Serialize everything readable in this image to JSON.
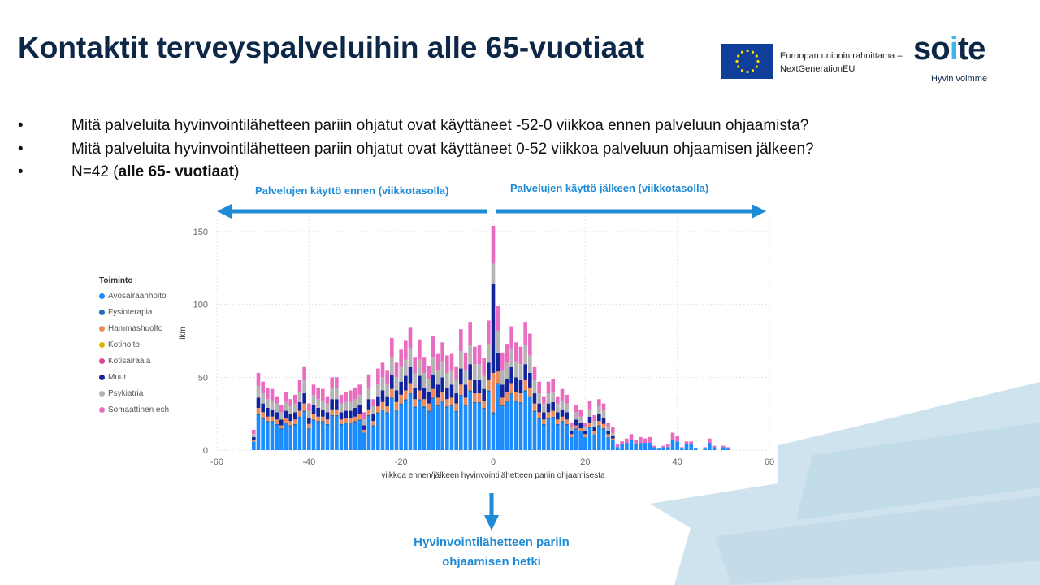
{
  "title": "Kontaktit terveyspalveluihin alle 65-vuotiaat",
  "eu_logo": {
    "text_line1": "Euroopan unionin rahoittama –",
    "text_line2": "NextGenerationEU",
    "icon": "eu-flag-icon"
  },
  "soite_logo": {
    "text": "soite",
    "tagline": "Hyvin voimme"
  },
  "bullets": [
    {
      "marker": "•",
      "text": "Mitä palveluita hyvinvointilähetteen pariin ohjatut ovat käyttäneet -52-0 viikkoa ennen palveluun ohjaamista?"
    },
    {
      "marker": "•",
      "text": "Mitä palveluita hyvinvointilähetteen pariin ohjatut ovat käyttäneet 0-52 viikkoa palveluun ohjaamisen jälkeen?"
    },
    {
      "marker": "•",
      "text_prefix": "N=42 (",
      "text_bold": "alle 65- vuotiaat",
      "text_suffix": ")"
    }
  ],
  "annotations": {
    "before": "Palvelujen käyttö ennen (viikkotasolla)",
    "after": "Palvelujen käyttö jälkeen (viikkotasolla)",
    "moment_line1": "Hyvinvointilähetteen pariin",
    "moment_line2": "ohjaamisen hetki",
    "arrow_color": "#1f8ad6"
  },
  "chart_data": {
    "type": "bar",
    "stacked": true,
    "xlabel": "viikkoa ennen/jälkeen hyvinvointilähetteen pariin ohjaamisesta",
    "ylabel": "lkm",
    "xlim": [
      -60,
      60
    ],
    "ylim": [
      0,
      160
    ],
    "xticks": [
      -60,
      -40,
      -20,
      0,
      20,
      40,
      60
    ],
    "yticks": [
      0,
      50,
      100,
      150
    ],
    "grid": true,
    "legend_title": "Toiminto",
    "legend_placement": "left",
    "x": [
      -52,
      -51,
      -50,
      -49,
      -48,
      -47,
      -46,
      -45,
      -44,
      -43,
      -42,
      -41,
      -40,
      -39,
      -38,
      -37,
      -36,
      -35,
      -34,
      -33,
      -32,
      -31,
      -30,
      -29,
      -28,
      -27,
      -26,
      -25,
      -24,
      -23,
      -22,
      -21,
      -20,
      -19,
      -18,
      -17,
      -16,
      -15,
      -14,
      -13,
      -12,
      -11,
      -10,
      -9,
      -8,
      -7,
      -6,
      -5,
      -4,
      -3,
      -2,
      -1,
      0,
      1,
      2,
      3,
      4,
      5,
      6,
      7,
      8,
      9,
      10,
      11,
      12,
      13,
      14,
      15,
      16,
      17,
      18,
      19,
      20,
      21,
      22,
      23,
      24,
      25,
      26,
      27,
      28,
      29,
      30,
      31,
      32,
      33,
      34,
      35,
      36,
      37,
      38,
      39,
      40,
      41,
      42,
      43,
      44,
      45,
      46,
      47,
      48,
      49,
      50,
      51,
      52
    ],
    "series": [
      {
        "name": "Avosairaanhoito",
        "color": "#1a8cff",
        "values": [
          6,
          24,
          21,
          19,
          19,
          17,
          14,
          18,
          16,
          17,
          22,
          26,
          14,
          20,
          19,
          19,
          17,
          23,
          23,
          17,
          18,
          18,
          19,
          20,
          12,
          23,
          16,
          25,
          27,
          25,
          35,
          27,
          31,
          34,
          38,
          29,
          34,
          29,
          26,
          35,
          30,
          33,
          29,
          30,
          26,
          37,
          30,
          40,
          32,
          32,
          28,
          40,
          24,
          45,
          30,
          33,
          38,
          33,
          32,
          40,
          36,
          26,
          21,
          17,
          21,
          22,
          17,
          19,
          17,
          9,
          14,
          13,
          9,
          15,
          11,
          16,
          14,
          9,
          7,
          2,
          4,
          5,
          7,
          4,
          5,
          5,
          5,
          2,
          1,
          2,
          2,
          7,
          6,
          1,
          4,
          4,
          1,
          0,
          1,
          5,
          2,
          0,
          2,
          1,
          0
        ]
      },
      {
        "name": "Fysioterapia",
        "color": "#1f6cb8",
        "values": [
          0,
          1,
          1,
          1,
          1,
          1,
          1,
          1,
          1,
          1,
          1,
          1,
          1,
          1,
          1,
          1,
          1,
          1,
          1,
          1,
          1,
          1,
          1,
          1,
          0,
          1,
          1,
          1,
          1,
          1,
          1,
          1,
          1,
          1,
          1,
          1,
          1,
          1,
          1,
          1,
          1,
          1,
          1,
          1,
          1,
          1,
          1,
          1,
          1,
          1,
          1,
          1,
          2,
          1,
          1,
          1,
          1,
          1,
          1,
          1,
          1,
          1,
          1,
          1,
          1,
          1,
          1,
          1,
          1,
          0,
          1,
          0,
          0,
          1,
          0,
          1,
          1,
          0,
          0,
          0,
          0,
          0,
          0,
          0,
          0,
          0,
          0,
          0,
          0,
          0,
          0,
          0,
          0,
          0,
          0,
          0,
          0,
          0,
          0,
          0,
          0,
          0,
          0,
          0,
          0
        ]
      },
      {
        "name": "Hammashuolto",
        "color": "#ee8a5a",
        "values": [
          1,
          4,
          4,
          3,
          3,
          3,
          2,
          3,
          3,
          3,
          4,
          5,
          3,
          4,
          3,
          3,
          3,
          4,
          4,
          3,
          3,
          3,
          3,
          4,
          2,
          4,
          3,
          4,
          5,
          4,
          6,
          5,
          6,
          6,
          7,
          5,
          6,
          5,
          5,
          6,
          5,
          6,
          5,
          5,
          5,
          7,
          5,
          7,
          6,
          6,
          5,
          7,
          27,
          8,
          5,
          6,
          7,
          6,
          6,
          7,
          6,
          5,
          4,
          3,
          4,
          4,
          3,
          3,
          3,
          2,
          2,
          2,
          2,
          3,
          2,
          3,
          3,
          2,
          1,
          0,
          0,
          0,
          0,
          0,
          0,
          0,
          0,
          0,
          0,
          0,
          0,
          0,
          0,
          0,
          0,
          0,
          0,
          0,
          0,
          0,
          0,
          0,
          0,
          0,
          0
        ]
      },
      {
        "name": "Kotihoito",
        "color": "#d9b300",
        "values": [
          0,
          0,
          0,
          0,
          0,
          0,
          0,
          0,
          0,
          0,
          0,
          0,
          0,
          0,
          0,
          0,
          0,
          0,
          0,
          0,
          0,
          0,
          0,
          0,
          0,
          0,
          0,
          0,
          0,
          0,
          0,
          0,
          0,
          0,
          0,
          0,
          0,
          0,
          0,
          0,
          0,
          0,
          0,
          0,
          0,
          0,
          0,
          0,
          0,
          0,
          0,
          0,
          0,
          0,
          0,
          0,
          0,
          0,
          0,
          0,
          0,
          0,
          0,
          0,
          0,
          0,
          0,
          0,
          0,
          0,
          0,
          0,
          0,
          0,
          0,
          0,
          0,
          0,
          0,
          0,
          0,
          0,
          0,
          0,
          0,
          0,
          0,
          0,
          0,
          0,
          0,
          0,
          0,
          0,
          0,
          0,
          0,
          0,
          0,
          0,
          0,
          0,
          0,
          0,
          0
        ]
      },
      {
        "name": "Kotisairaala",
        "color": "#e0449f",
        "values": [
          0,
          0,
          0,
          0,
          0,
          0,
          0,
          0,
          0,
          0,
          0,
          0,
          0,
          0,
          0,
          0,
          0,
          0,
          0,
          0,
          0,
          0,
          0,
          0,
          0,
          0,
          0,
          0,
          0,
          0,
          0,
          0,
          0,
          0,
          0,
          0,
          0,
          0,
          0,
          0,
          0,
          0,
          0,
          0,
          0,
          0,
          0,
          0,
          0,
          0,
          0,
          0,
          0,
          0,
          0,
          0,
          0,
          0,
          0,
          0,
          0,
          0,
          0,
          0,
          0,
          0,
          0,
          0,
          0,
          0,
          0,
          0,
          0,
          0,
          0,
          0,
          0,
          0,
          0,
          0,
          0,
          0,
          0,
          0,
          0,
          0,
          0,
          0,
          0,
          0,
          0,
          0,
          0,
          0,
          0,
          0,
          0,
          0,
          0,
          0,
          0,
          0,
          0,
          0,
          0
        ]
      },
      {
        "name": "Muut",
        "color": "#12239e",
        "values": [
          2,
          7,
          6,
          6,
          5,
          5,
          4,
          5,
          5,
          5,
          6,
          7,
          4,
          6,
          6,
          5,
          5,
          7,
          7,
          5,
          5,
          5,
          6,
          6,
          3,
          7,
          5,
          7,
          8,
          7,
          10,
          8,
          9,
          10,
          11,
          8,
          10,
          8,
          8,
          10,
          9,
          10,
          8,
          9,
          7,
          11,
          9,
          11,
          9,
          9,
          8,
          12,
          61,
          13,
          9,
          9,
          11,
          10,
          9,
          11,
          10,
          7,
          6,
          5,
          6,
          6,
          5,
          5,
          5,
          2,
          4,
          4,
          2,
          4,
          3,
          5,
          4,
          2,
          2,
          0,
          0,
          0,
          0,
          0,
          0,
          0,
          0,
          0,
          0,
          0,
          0,
          0,
          0,
          0,
          0,
          0,
          0,
          0,
          0,
          0,
          0,
          0,
          0,
          0,
          0
        ]
      },
      {
        "name": "Psykiatria",
        "color": "#b3b3b3",
        "values": [
          2,
          8,
          7,
          6,
          6,
          6,
          5,
          6,
          5,
          6,
          7,
          9,
          5,
          7,
          6,
          6,
          6,
          8,
          8,
          6,
          6,
          6,
          6,
          7,
          4,
          8,
          5,
          8,
          9,
          8,
          12,
          9,
          10,
          11,
          13,
          10,
          11,
          10,
          9,
          12,
          10,
          11,
          10,
          10,
          9,
          12,
          10,
          13,
          11,
          11,
          9,
          13,
          14,
          15,
          10,
          11,
          13,
          11,
          11,
          13,
          12,
          9,
          7,
          6,
          7,
          7,
          6,
          6,
          6,
          3,
          5,
          4,
          3,
          5,
          4,
          5,
          5,
          3,
          2,
          0,
          0,
          0,
          0,
          0,
          0,
          0,
          0,
          0,
          0,
          0,
          0,
          0,
          0,
          0,
          0,
          0,
          0,
          0,
          0,
          0,
          0,
          0,
          0,
          0,
          0
        ]
      },
      {
        "name": "Somaattinen esh",
        "color": "#ea6cc0",
        "values": [
          3,
          9,
          8,
          8,
          8,
          5,
          5,
          7,
          5,
          6,
          8,
          9,
          5,
          7,
          8,
          8,
          5,
          7,
          7,
          6,
          7,
          8,
          8,
          7,
          5,
          9,
          5,
          11,
          10,
          10,
          13,
          10,
          12,
          13,
          14,
          11,
          14,
          11,
          9,
          14,
          11,
          13,
          12,
          11,
          9,
          15,
          12,
          16,
          12,
          13,
          12,
          16,
          26,
          17,
          12,
          13,
          15,
          13,
          12,
          16,
          15,
          9,
          8,
          5,
          8,
          9,
          5,
          8,
          6,
          3,
          5,
          5,
          3,
          6,
          4,
          5,
          5,
          3,
          4,
          2,
          2,
          3,
          4,
          3,
          4,
          3,
          4,
          1,
          0,
          1,
          2,
          5,
          4,
          1,
          2,
          2,
          0,
          0,
          1,
          3,
          1,
          0,
          1,
          1,
          0
        ]
      }
    ]
  }
}
